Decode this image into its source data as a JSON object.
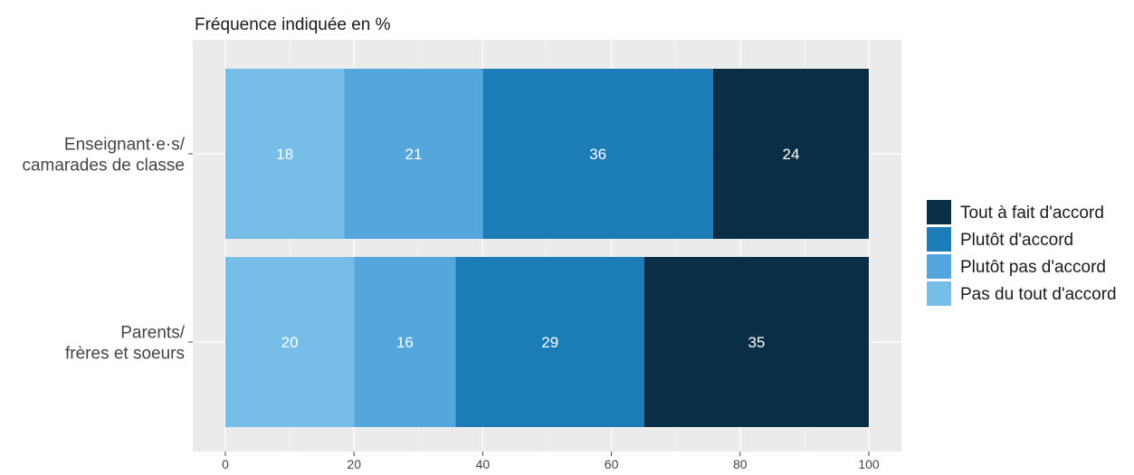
{
  "chart_data": {
    "type": "bar",
    "orientation": "horizontal",
    "stacked": true,
    "title": "",
    "subtitle": "Fréquence indiquée en %",
    "xlabel": "",
    "ylabel": "",
    "xlim": [
      0,
      100
    ],
    "x_ticks": [
      0,
      20,
      40,
      60,
      80,
      100
    ],
    "grid": true,
    "legend_position": "right",
    "categories": [
      [
        "Enseignant·e·s/",
        "camarades de classe"
      ],
      [
        "Parents/",
        "frères et soeurs"
      ]
    ],
    "series": [
      {
        "name": "Pas du tout d'accord",
        "color": "#76bde8",
        "values": [
          18.5,
          20
        ],
        "labels": [
          "18",
          "20"
        ]
      },
      {
        "name": "Plutôt pas d'accord",
        "color": "#54a6dc",
        "values": [
          21.5,
          15.8
        ],
        "labels": [
          "21",
          "16"
        ]
      },
      {
        "name": "Plutôt d'accord",
        "color": "#1c7cb8",
        "values": [
          35.8,
          29.3
        ],
        "labels": [
          "36",
          "29"
        ]
      },
      {
        "name": "Tout à fait d'accord",
        "color": "#0b2e47",
        "values": [
          24.2,
          34.9
        ],
        "labels": [
          "24",
          "35"
        ]
      }
    ],
    "legend_order": [
      3,
      2,
      1,
      0
    ]
  }
}
